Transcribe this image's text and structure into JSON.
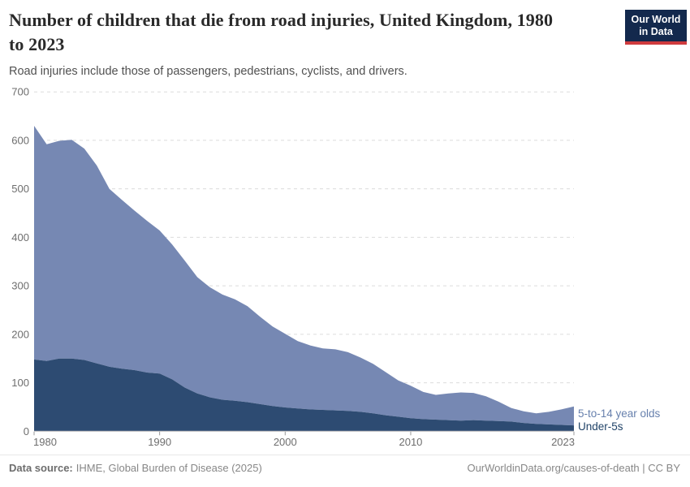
{
  "header": {
    "title_line1": "Number of children that die from road injuries, United Kingdom, 1980",
    "title_line2": "to 2023",
    "subtitle": "Road injuries include those of passengers, pedestrians, cyclists, and drivers."
  },
  "logo": {
    "line1": "Our World",
    "line2": "in Data",
    "bg_color": "#13294d",
    "stripe_color": "#cf3b3e"
  },
  "footer": {
    "source_label": "Data source:",
    "source_text": "IHME, Global Burden of Disease (2025)",
    "right_text": "OurWorldinData.org/causes-of-death | CC BY"
  },
  "chart_data": {
    "type": "area",
    "stacked": true,
    "title": "Number of children that die from road injuries, United Kingdom, 1980 to 2023",
    "xlabel": "",
    "ylabel": "",
    "ylim": [
      0,
      700
    ],
    "yticks": [
      0,
      100,
      200,
      300,
      400,
      500,
      600,
      700
    ],
    "xticks": [
      1980,
      1990,
      2000,
      2010,
      2023
    ],
    "grid": "horizontal-dashed",
    "legend_position": "right-end-labels",
    "x": [
      1980,
      1981,
      1982,
      1983,
      1984,
      1985,
      1986,
      1987,
      1988,
      1989,
      1990,
      1991,
      1992,
      1993,
      1994,
      1995,
      1996,
      1997,
      1998,
      1999,
      2000,
      2001,
      2002,
      2003,
      2004,
      2005,
      2006,
      2007,
      2008,
      2009,
      2010,
      2011,
      2012,
      2013,
      2014,
      2015,
      2016,
      2017,
      2018,
      2019,
      2020,
      2021,
      2022,
      2023
    ],
    "series": [
      {
        "name": "Under-5s",
        "color": "#2d4b72",
        "label_color": "#214368",
        "values": [
          148,
          145,
          150,
          150,
          147,
          140,
          133,
          129,
          126,
          121,
          119,
          107,
          90,
          78,
          70,
          65,
          63,
          60,
          56,
          52,
          49,
          47,
          45,
          44,
          43,
          42,
          40,
          37,
          33,
          30,
          27,
          25,
          24,
          23,
          22,
          23,
          22,
          21,
          20,
          17,
          15,
          14,
          13,
          12
        ]
      },
      {
        "name": "5-to-14 year olds",
        "color": "#7688b3",
        "label_color": "#6780ad",
        "values": [
          482,
          447,
          449,
          451,
          436,
          408,
          367,
          348,
          329,
          313,
          295,
          278,
          262,
          240,
          227,
          217,
          209,
          198,
          180,
          164,
          152,
          139,
          132,
          127,
          126,
          121,
          112,
          102,
          89,
          75,
          67,
          56,
          51,
          55,
          58,
          56,
          50,
          40,
          28,
          24,
          22,
          26,
          32,
          39
        ]
      }
    ],
    "axis_colors": {
      "tick_label": "#6e6e6e",
      "gridline": "#dcdcdc",
      "baseline": "#b9b9b9",
      "tick_mark": "#999999"
    }
  }
}
